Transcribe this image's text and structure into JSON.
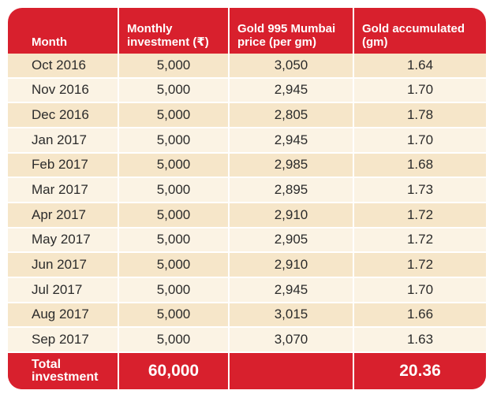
{
  "table": {
    "headers": {
      "month": "Month",
      "monthly_investment": "Monthly investment (₹)",
      "gold_price": "Gold 995 Mumbai price (per gm)",
      "gold_accumulated": "Gold accumulated (gm)"
    },
    "rows": [
      {
        "month": "Oct 2016",
        "investment": "5,000",
        "price": "3,050",
        "gold": "1.64"
      },
      {
        "month": "Nov 2016",
        "investment": "5,000",
        "price": "2,945",
        "gold": "1.70"
      },
      {
        "month": "Dec 2016",
        "investment": "5,000",
        "price": "2,805",
        "gold": "1.78"
      },
      {
        "month": "Jan 2017",
        "investment": "5,000",
        "price": "2,945",
        "gold": "1.70"
      },
      {
        "month": "Feb 2017",
        "investment": "5,000",
        "price": "2,985",
        "gold": "1.68"
      },
      {
        "month": "Mar 2017",
        "investment": "5,000",
        "price": "2,895",
        "gold": "1.73"
      },
      {
        "month": "Apr 2017",
        "investment": "5,000",
        "price": "2,910",
        "gold": "1.72"
      },
      {
        "month": "May 2017",
        "investment": "5,000",
        "price": "2,905",
        "gold": "1.72"
      },
      {
        "month": "Jun 2017",
        "investment": "5,000",
        "price": "2,910",
        "gold": "1.72"
      },
      {
        "month": "Jul 2017",
        "investment": "5,000",
        "price": "2,945",
        "gold": "1.70"
      },
      {
        "month": "Aug 2017",
        "investment": "5,000",
        "price": "3,015",
        "gold": "1.66"
      },
      {
        "month": "Sep 2017",
        "investment": "5,000",
        "price": "3,070",
        "gold": "1.63"
      }
    ],
    "total": {
      "label": "Total investment",
      "investment": "60,000",
      "gold": "20.36"
    }
  },
  "colors": {
    "header_red": "#d8202d",
    "row_odd": "#f6e6c9",
    "row_even": "#fbf3e4",
    "text": "#2b2b2b"
  }
}
